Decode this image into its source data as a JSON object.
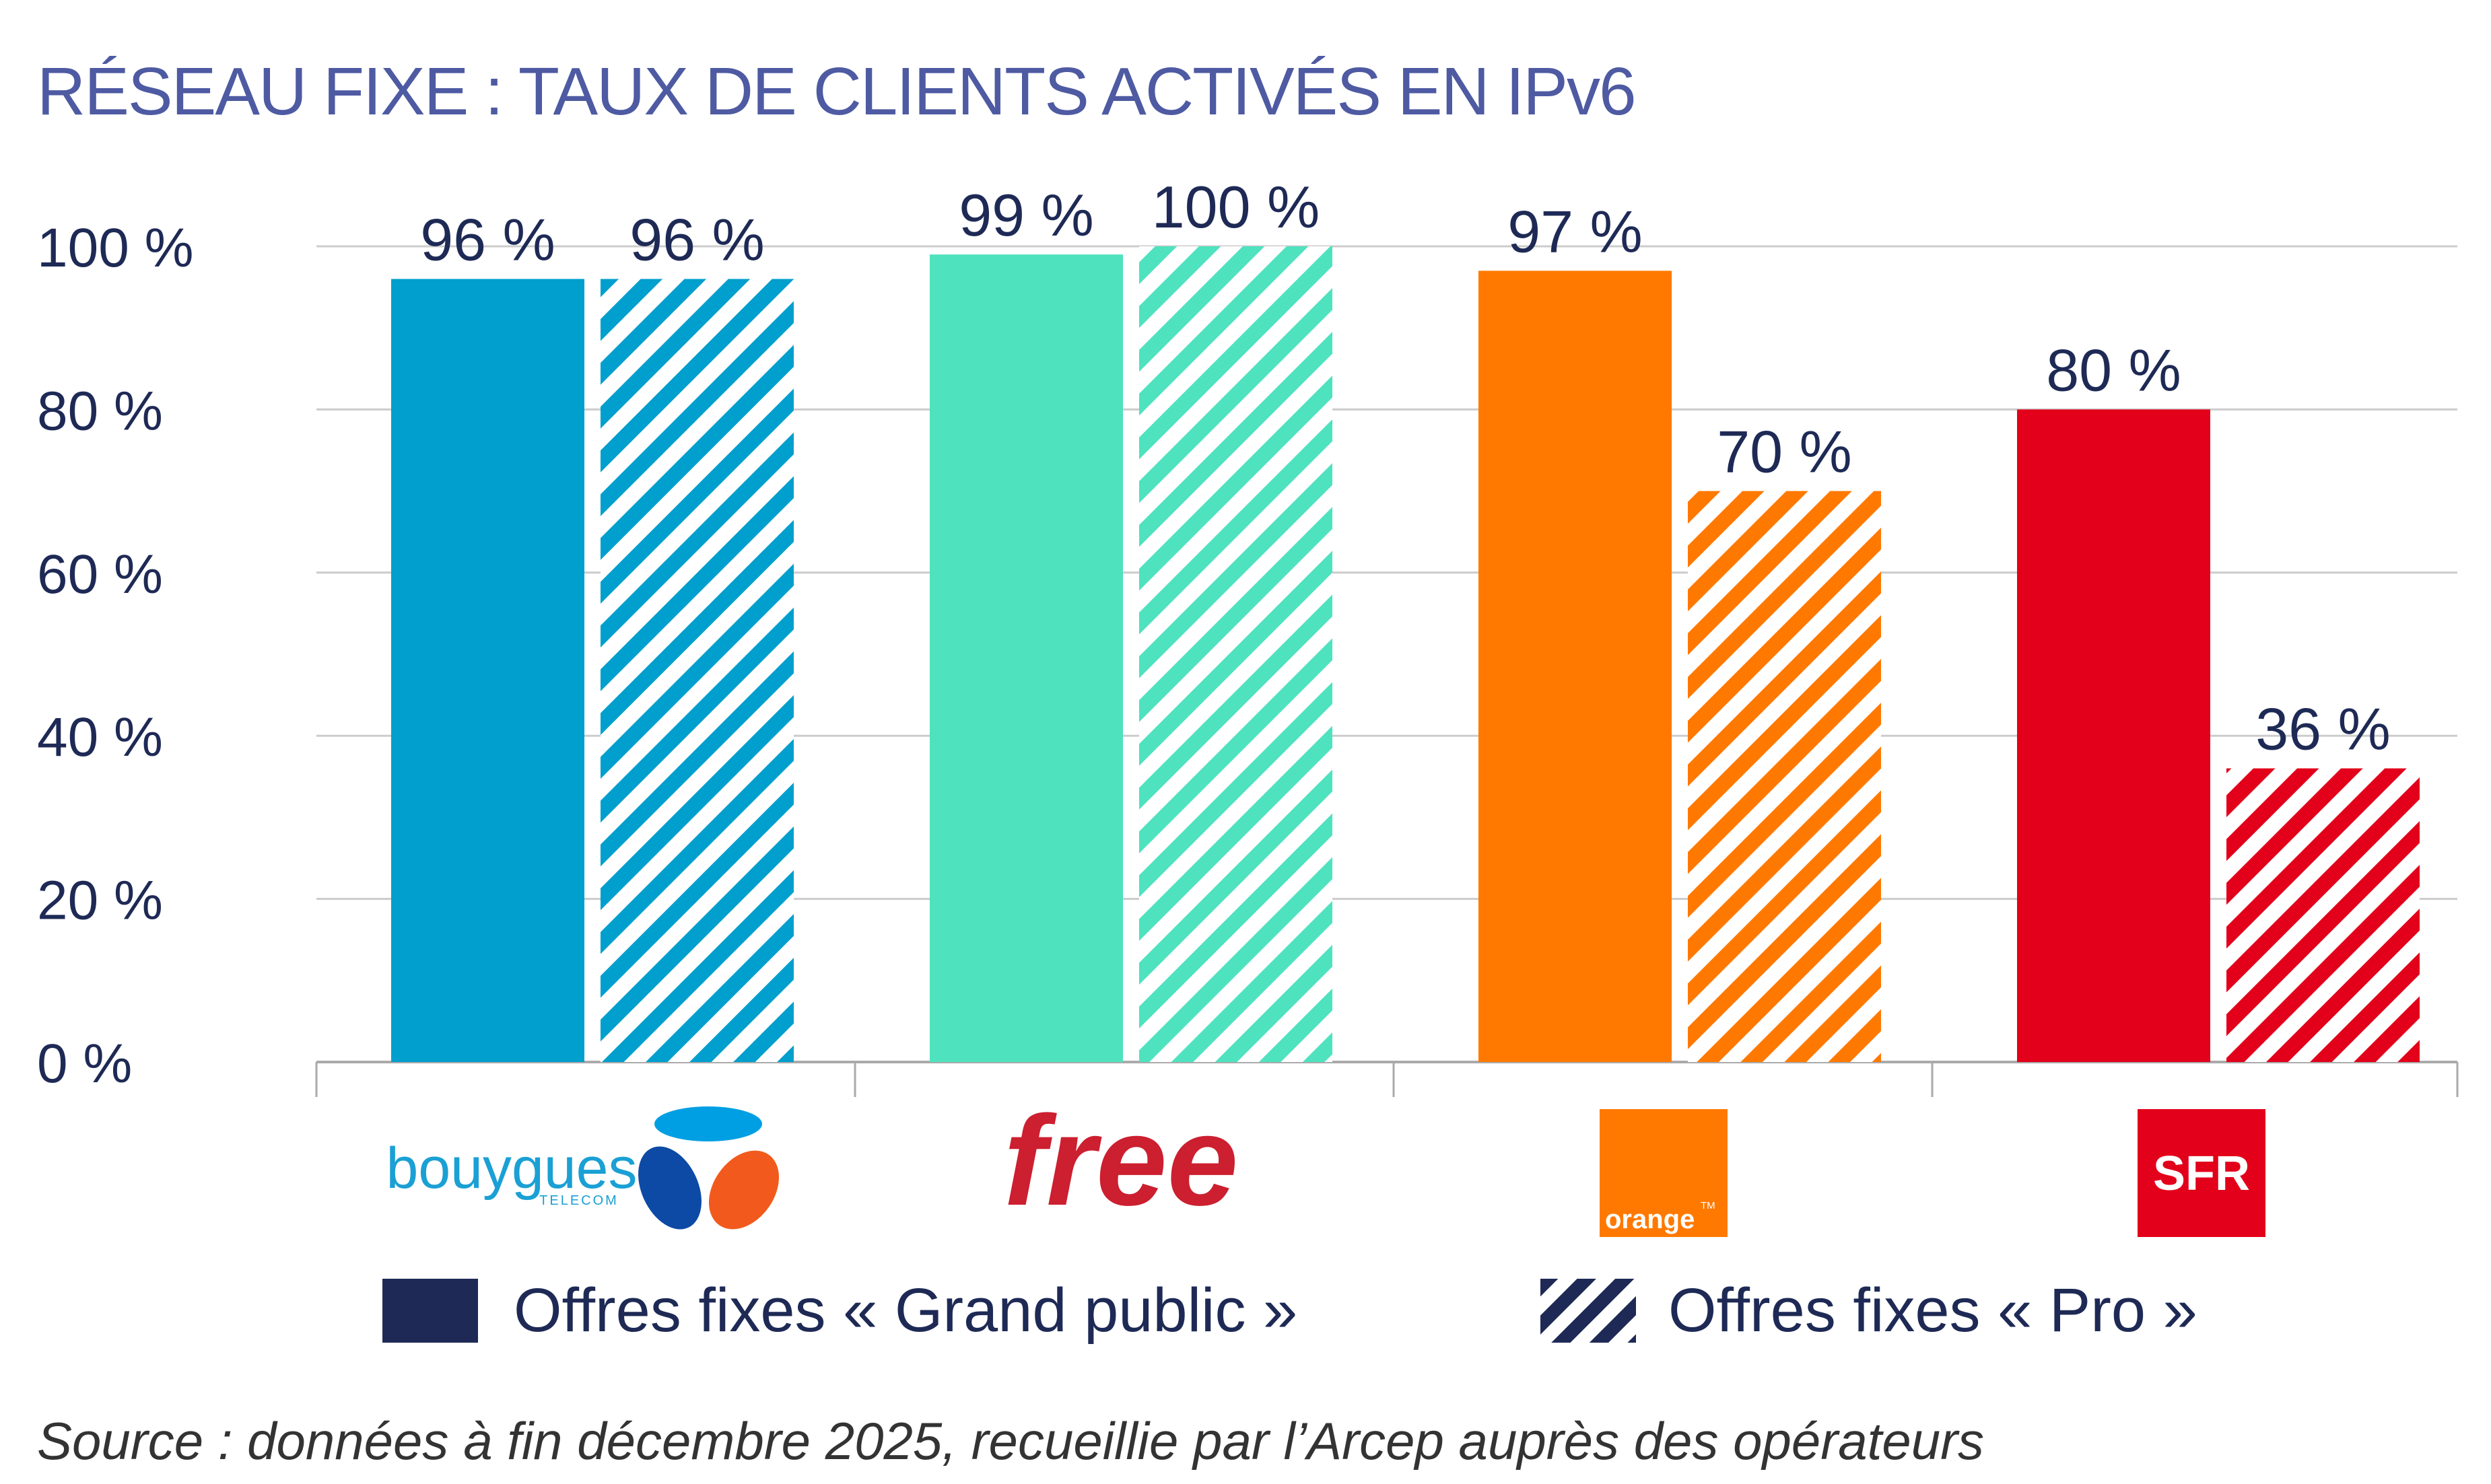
{
  "chart_data": {
    "type": "bar",
    "title": "RÉSEAU FIXE : TAUX DE CLIENTS ACTIVÉS EN IPv6",
    "categories": [
      "bouygues",
      "free",
      "orange",
      "SFR"
    ],
    "series": [
      {
        "name": "Offres fixes « Grand public »",
        "values": [
          96,
          99,
          97,
          80
        ],
        "labels": [
          "96 %",
          "99 %",
          "97 %",
          "80 %"
        ],
        "pattern": "solid"
      },
      {
        "name": "Offres fixes « Pro »",
        "values": [
          96,
          100,
          70,
          36
        ],
        "labels": [
          "96 %",
          "100 %",
          "70 %",
          "36 %"
        ],
        "pattern": "hatched"
      }
    ],
    "bar_colors": [
      "#009fcd",
      "#4fe2bf",
      "#ff7900",
      "#e2001a"
    ],
    "ylim": [
      0,
      100
    ],
    "yticks": [
      0,
      20,
      40,
      60,
      80,
      100
    ],
    "ytick_labels": [
      "0 %",
      "20 %",
      "40 %",
      "60 %",
      "80 %",
      "100 %"
    ],
    "grid": true,
    "legend_position": "bottom",
    "legend_color": "#1e2a55"
  },
  "logos": {
    "bouygues": {
      "text": "bouygues",
      "subtext": "TELECOM"
    },
    "free": {
      "text": "free"
    },
    "orange": {
      "text": "orange",
      "mark": "TM"
    },
    "sfr": {
      "text": "SFR"
    }
  },
  "source_note": "Source : données à fin décembre 2025, recueillie par l’Arcep auprès des opérateurs",
  "colors": {
    "title": "#4e5aa2",
    "text": "#1e2a55",
    "grid": "#cccccc",
    "source": "#333333"
  }
}
